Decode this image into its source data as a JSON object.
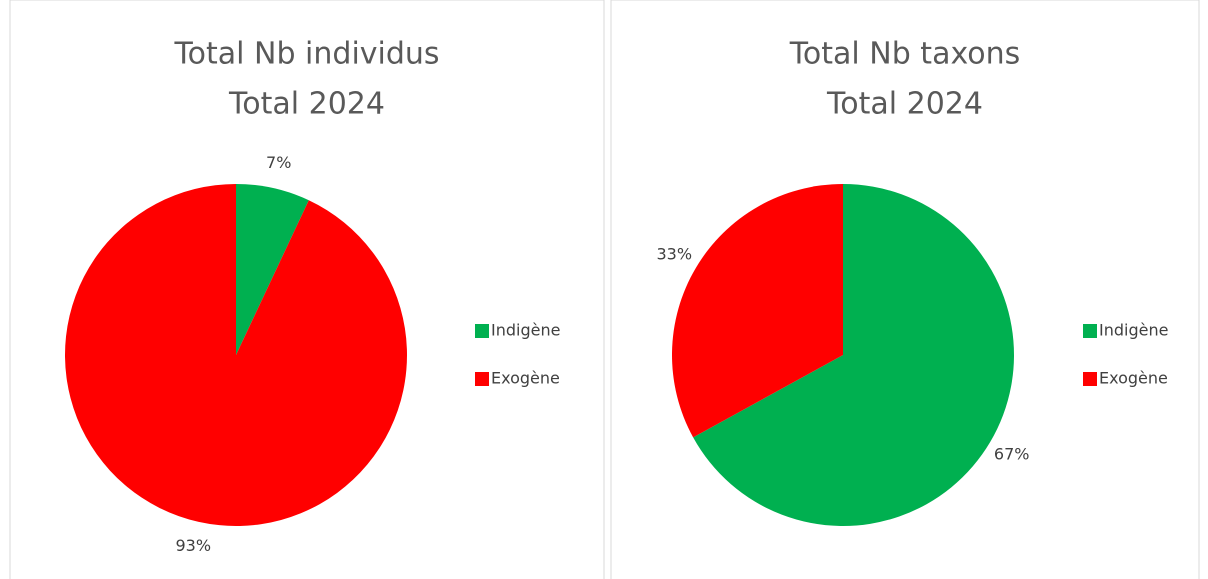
{
  "chart_data": [
    {
      "type": "pie",
      "title": "Total Nb individus",
      "subtitle": "Total 2024",
      "categories": [
        "Indigène",
        "Exogène"
      ],
      "values": [
        7,
        93
      ],
      "value_labels": [
        "7%",
        "93%"
      ],
      "colors": [
        "#00b050",
        "#ff0000"
      ],
      "legend": "right"
    },
    {
      "type": "pie",
      "title": "Total Nb taxons",
      "subtitle": "Total 2024",
      "categories": [
        "Indigène",
        "Exogène"
      ],
      "values": [
        67,
        33
      ],
      "value_labels": [
        "67%",
        "33%"
      ],
      "colors": [
        "#00b050",
        "#ff0000"
      ],
      "legend": "right"
    }
  ]
}
